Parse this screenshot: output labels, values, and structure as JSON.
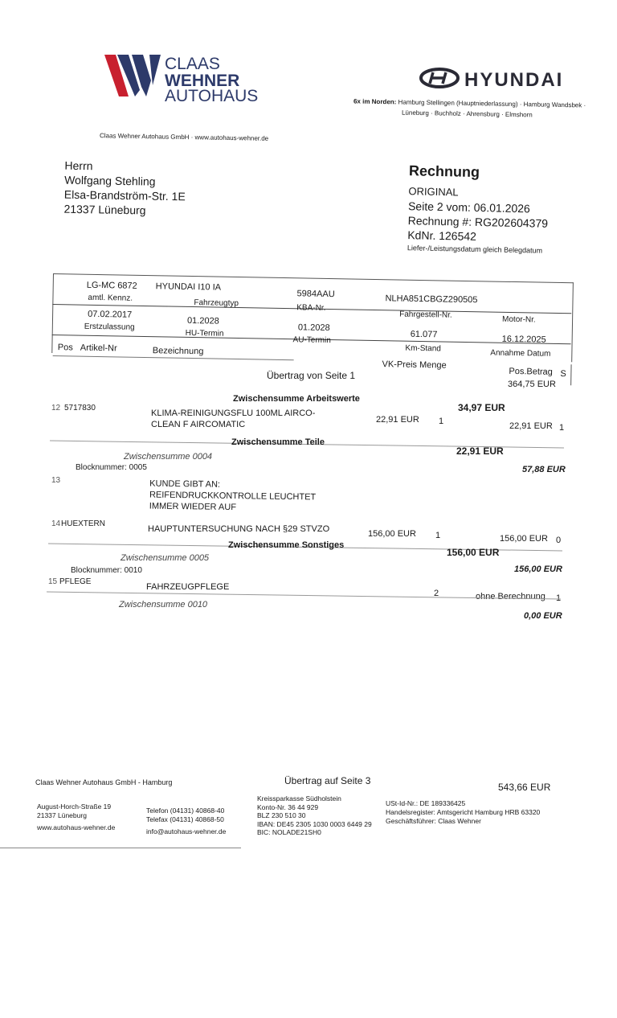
{
  "header": {
    "logo_lines": [
      "CLAAS",
      "WEHNER",
      "AUTOHAUS"
    ],
    "brand": "HYUNDAI",
    "branches_label": "6x im Norden:",
    "branches_line1": "Hamburg Stellingen (Hauptniederlassung) · Hamburg Wandsbek ·",
    "branches_line2": "Lüneburg · Buchholz · Ahrensburg · Elmshorn",
    "sender_line": "Claas Wehner Autohaus GmbH · www.autohaus-wehner.de",
    "colors": {
      "logo_red": "#c8202f",
      "logo_blue": "#2d3a6a"
    }
  },
  "recipient": [
    "Herrn",
    "Wolfgang Stehling",
    "Elsa-Brandström-Str. 1E",
    "21337 Lüneburg"
  ],
  "invoice": {
    "title": "Rechnung",
    "original": "ORIGINAL",
    "page_date": "Seite 2  vom: 06.01.2026",
    "number": "Rechnung #: RG202604379",
    "customer": "KdNr. 126542",
    "note": "Liefer-/Leistungsdatum gleich Belegdatum"
  },
  "vehicle": {
    "plate": "LG-MC 6872",
    "plate_label": "amtl. Kennz.",
    "type": "HYUNDAI I10 IA",
    "type_label": "Fahrzeugtyp",
    "kba": "5984AAU",
    "kba_label": "KBA-Nr.",
    "vin": "NLHA851CBGZ290505",
    "vin_label": "Fahrgestell-Nr.",
    "motor_label": "Motor-Nr.",
    "first_reg": "07.02.2017",
    "first_reg_label": "Erstzulassung",
    "hu": "01.2028",
    "hu_label": "HU-Termin",
    "au": "01.2028",
    "au_label": "AU-Termin",
    "km": "61.077",
    "km_label": "Km-Stand",
    "accept": "16.12.2025",
    "accept_label": "Annahme Datum"
  },
  "columns": {
    "pos": "Pos",
    "article": "Artikel-Nr",
    "desc": "Bezeichnung",
    "price_qty": "VK-Preis  Menge",
    "amount": "Pos.Betrag",
    "s": "S"
  },
  "carry_in": {
    "label": "Übertrag von Seite 1",
    "value": "364,75 EUR"
  },
  "rows": {
    "sub_arbeit": {
      "label": "Zwischensumme  Arbeitswerte",
      "value": "34,97 EUR"
    },
    "r12": {
      "pos": "12",
      "art": "5717830",
      "desc1": "KLIMA-REINIGUNGSFLU 100ML AIRCO-",
      "desc2": "CLEAN F AIRCOMATIC",
      "price": "22,91 EUR",
      "qty": "1",
      "amount": "22,91 EUR",
      "s": "1"
    },
    "sub_teile": {
      "label": "Zwischensumme  Teile",
      "value": "22,91 EUR"
    },
    "sub_0004": {
      "label": "Zwischensumme  0004",
      "value": "57,88 EUR"
    },
    "block_0005": "Blocknummer:  0005",
    "r13": {
      "pos": "13",
      "desc1": "KUNDE GIBT AN:",
      "desc2": "REIFENDRUCKKONTROLLE LEUCHTET",
      "desc3": "IMMER WIEDER AUF"
    },
    "r14": {
      "pos": "14",
      "art": "HUEXTERN",
      "desc": "HAUPTUNTERSUCHUNG NACH §29 STVZO",
      "price": "156,00 EUR",
      "qty": "1",
      "amount": "156,00 EUR",
      "s": "0"
    },
    "sub_sonst": {
      "label": "Zwischensumme  Sonstiges",
      "value": "156,00 EUR"
    },
    "sub_0005": {
      "label": "Zwischensumme  0005",
      "value": "156,00 EUR"
    },
    "block_0010": "Blocknummer:  0010",
    "r15": {
      "pos": "15",
      "art": "PFLEGE",
      "desc": "FAHRZEUGPFLEGE",
      "qty": "2",
      "amount": "ohne Berechnung",
      "s": "1"
    },
    "sub_0010": {
      "label": "Zwischensumme  0010",
      "value": "0,00 EUR"
    }
  },
  "carry_out": {
    "label": "Übertrag auf Seite 3",
    "value": "543,66 EUR"
  },
  "footer": {
    "company": "Claas Wehner Autohaus GmbH - Hamburg",
    "addr": [
      "August-Horch-Straße 19",
      "21337 Lüneburg"
    ],
    "web": "www.autohaus-wehner.de",
    "phone": [
      "Telefon (04131) 40868-40",
      "Telefax (04131) 40868-50"
    ],
    "mail": "info@autohaus-wehner.de",
    "bank": [
      "Kreissparkasse Südholstein",
      "Konto-Nr. 36 44 929",
      "BLZ 230 510 30",
      "IBAN: DE45 2305 1030 0003 6449 29",
      "BIC: NOLADE21SH0"
    ],
    "legal": [
      "USt-Id-Nr.: DE 189336425",
      "Handelsregister: Amtsgericht Hamburg HRB 63320",
      "Geschäftsführer: Claas Wehner"
    ]
  }
}
